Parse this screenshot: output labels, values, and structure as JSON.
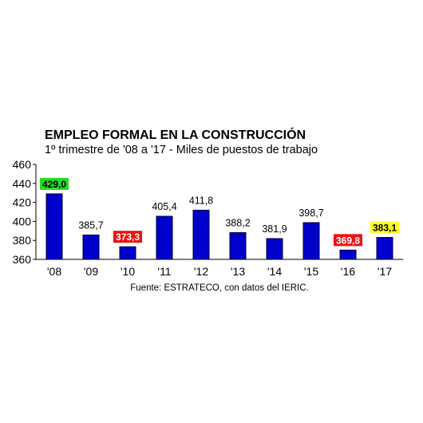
{
  "header": {
    "title": "EMPLEO FORMAL EN LA CONSTRUCCIÓN",
    "subtitle": "1º trimestre de '08 a '17 - Miles de puestos de trabajo"
  },
  "footer": {
    "source": "Fuente: ESTRATECO, con datos del IERIC."
  },
  "chart_data": {
    "type": "bar",
    "title": "EMPLEO FORMAL EN LA CONSTRUCCIÓN",
    "subtitle": "1º trimestre de '08 a '17 - Miles de puestos de trabajo",
    "categories": [
      "'08",
      "'09",
      "'10",
      "'11",
      "'12",
      "'13",
      "'14",
      "'15",
      "'16",
      "'17"
    ],
    "values": [
      429.0,
      385.7,
      373.3,
      405.4,
      411.8,
      388.2,
      381.9,
      398.7,
      369.8,
      383.1
    ],
    "value_labels": [
      "429,0",
      "385,7",
      "373,3",
      "405,4",
      "411,8",
      "388,2",
      "381,9",
      "398,7",
      "369,8",
      "383,1"
    ],
    "ylim": [
      360,
      460
    ],
    "yticks": [
      360,
      380,
      400,
      420,
      440,
      460
    ],
    "grid": false,
    "legend": "none",
    "bar_color": "#0000cc",
    "highlights": [
      {
        "index": 0,
        "background": "#22dd22",
        "text_color": "#000000"
      },
      {
        "index": 2,
        "background": "#ee1111",
        "text_color": "#ffffff"
      },
      {
        "index": 8,
        "background": "#ee1111",
        "text_color": "#ffffff"
      },
      {
        "index": 9,
        "background": "#ffff22",
        "text_color": "#000000"
      }
    ]
  }
}
